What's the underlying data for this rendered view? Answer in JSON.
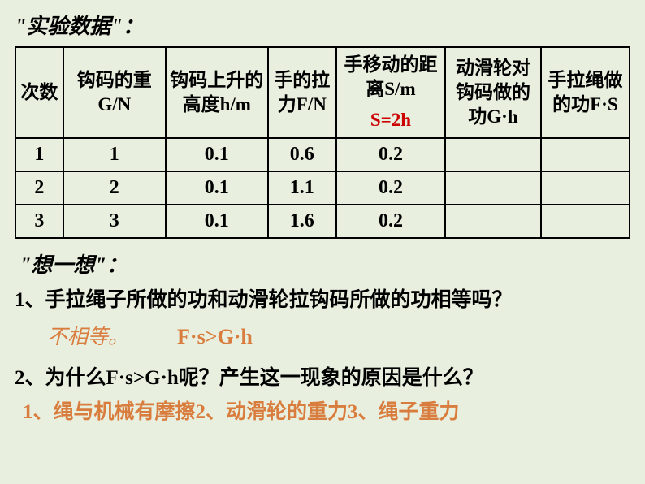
{
  "title1": "\"实验数据\"：",
  "headers": {
    "h1": "次数",
    "h2": "钩码的重G/N",
    "h3": "钩码上升的高度h/m",
    "h4": "手的拉力F/N",
    "h5": "手移动的距离S/m",
    "h5red": "S=2h",
    "h6": "动滑轮对钩码做的功G·h",
    "h7": "手拉绳做的功F·S"
  },
  "rows": [
    {
      "c1": "1",
      "c2": "1",
      "c3": "0.1",
      "c4": "0.6",
      "c5": "0.2",
      "c6": "",
      "c7": ""
    },
    {
      "c1": "2",
      "c2": "2",
      "c3": "0.1",
      "c4": "1.1",
      "c5": "0.2",
      "c6": "",
      "c7": ""
    },
    {
      "c1": "3",
      "c2": "3",
      "c3": "0.1",
      "c4": "1.6",
      "c5": "0.2",
      "c6": "",
      "c7": ""
    }
  ],
  "thinkTitle": "\"想一想\"：",
  "q1": "1、手拉绳子所做的功和动滑轮拉钩码所做的功相等吗？",
  "a1": "不相等。",
  "f1": "F·s>G·h",
  "q2": "2、为什么F·s>G·h呢？产生这一现象的原因是什么？",
  "a2": "1、绳与机械有摩擦2、动滑轮的重力3、绳子重力",
  "colors": {
    "bg": "#e8efdf",
    "border": "#000000",
    "text": "#000000",
    "red": "#cc0000",
    "orange": "#d97d3e"
  },
  "fonts": {
    "title_size": 26,
    "cell_size": 24,
    "header_size": 23,
    "question_size": 25
  }
}
